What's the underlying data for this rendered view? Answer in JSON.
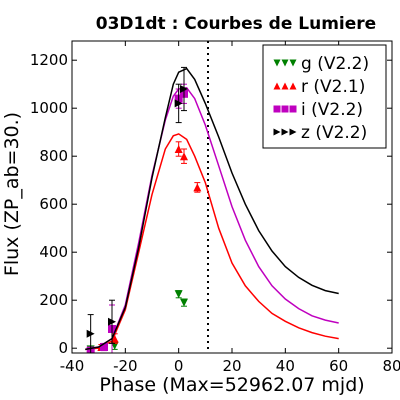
{
  "chart_data": {
    "type": "line",
    "title": "03D1dt : Courbes de Lumiere",
    "xlabel": "Phase (Max=52962.07 mjd)",
    "ylabel": "Flux (ZP_ab=30.)",
    "xlim": [
      -40,
      80
    ],
    "ylim": [
      -20,
      1280
    ],
    "xticks": [
      -40,
      -20,
      0,
      20,
      40,
      60,
      80
    ],
    "yticks": [
      0,
      200,
      400,
      600,
      800,
      1000,
      1200
    ],
    "xtick_labels": [
      "-40",
      "-20",
      "0",
      "20",
      "40",
      "60",
      "80"
    ],
    "ytick_labels": [
      "0",
      "200",
      "400",
      "600",
      "800",
      "1000",
      "1200"
    ],
    "vline_x": 11,
    "grid": false,
    "legend_position": "top-right",
    "series": [
      {
        "name": "g (V2.2)",
        "color": "#008000",
        "marker": "triangle-down",
        "points": [
          {
            "x": -33,
            "y": -5,
            "err": 10
          },
          {
            "x": -24,
            "y": 10,
            "err": 15
          },
          {
            "x": 0,
            "y": 225,
            "err": 15
          },
          {
            "x": 2,
            "y": 190,
            "err": 15
          }
        ],
        "curve": []
      },
      {
        "name": "r (V2.1)",
        "color": "#ff0000",
        "marker": "triangle-up",
        "points": [
          {
            "x": -33,
            "y": -10,
            "err": 10
          },
          {
            "x": -29,
            "y": 5,
            "err": 10
          },
          {
            "x": -24,
            "y": 40,
            "err": 20
          },
          {
            "x": 0,
            "y": 830,
            "err": 30
          },
          {
            "x": 2,
            "y": 800,
            "err": 30
          },
          {
            "x": 7,
            "y": 670,
            "err": 20
          }
        ],
        "curve": [
          {
            "x": -35,
            "y": -5
          },
          {
            "x": -30,
            "y": 0
          },
          {
            "x": -25,
            "y": 30
          },
          {
            "x": -20,
            "y": 160
          },
          {
            "x": -15,
            "y": 400
          },
          {
            "x": -10,
            "y": 640
          },
          {
            "x": -5,
            "y": 830
          },
          {
            "x": -2,
            "y": 885
          },
          {
            "x": 0,
            "y": 893
          },
          {
            "x": 3,
            "y": 870
          },
          {
            "x": 6,
            "y": 800
          },
          {
            "x": 10,
            "y": 690
          },
          {
            "x": 15,
            "y": 500
          },
          {
            "x": 20,
            "y": 355
          },
          {
            "x": 25,
            "y": 260
          },
          {
            "x": 30,
            "y": 195
          },
          {
            "x": 35,
            "y": 145
          },
          {
            "x": 40,
            "y": 112
          },
          {
            "x": 45,
            "y": 85
          },
          {
            "x": 50,
            "y": 65
          },
          {
            "x": 55,
            "y": 50
          },
          {
            "x": 60,
            "y": 40
          }
        ]
      },
      {
        "name": "i (V2.2)",
        "color": "#bf00bf",
        "marker": "square",
        "points": [
          {
            "x": -33,
            "y": -10,
            "err": 10
          },
          {
            "x": -28,
            "y": 5,
            "err": 15
          },
          {
            "x": -25,
            "y": 80,
            "err": 100
          },
          {
            "x": 0,
            "y": 1040,
            "err": 40
          },
          {
            "x": 2,
            "y": 1060,
            "err": 40
          }
        ],
        "curve": [
          {
            "x": -35,
            "y": -5
          },
          {
            "x": -30,
            "y": 5
          },
          {
            "x": -25,
            "y": 40
          },
          {
            "x": -20,
            "y": 180
          },
          {
            "x": -15,
            "y": 440
          },
          {
            "x": -10,
            "y": 720
          },
          {
            "x": -5,
            "y": 950
          },
          {
            "x": -2,
            "y": 1050
          },
          {
            "x": 0,
            "y": 1080
          },
          {
            "x": 3,
            "y": 1085
          },
          {
            "x": 6,
            "y": 1040
          },
          {
            "x": 10,
            "y": 930
          },
          {
            "x": 15,
            "y": 760
          },
          {
            "x": 20,
            "y": 590
          },
          {
            "x": 25,
            "y": 450
          },
          {
            "x": 30,
            "y": 340
          },
          {
            "x": 35,
            "y": 260
          },
          {
            "x": 40,
            "y": 205
          },
          {
            "x": 45,
            "y": 165
          },
          {
            "x": 50,
            "y": 135
          },
          {
            "x": 55,
            "y": 117
          },
          {
            "x": 60,
            "y": 105
          }
        ]
      },
      {
        "name": "z (V2.2)",
        "color": "#000000",
        "marker": "triangle-right",
        "points": [
          {
            "x": -33,
            "y": 60,
            "err": 80
          },
          {
            "x": -25,
            "y": 110,
            "err": 90
          },
          {
            "x": 0,
            "y": 1020,
            "err": 80
          },
          {
            "x": 2,
            "y": 1080,
            "err": 90
          }
        ],
        "curve": [
          {
            "x": -35,
            "y": -5
          },
          {
            "x": -30,
            "y": 5
          },
          {
            "x": -25,
            "y": 40
          },
          {
            "x": -20,
            "y": 170
          },
          {
            "x": -15,
            "y": 420
          },
          {
            "x": -10,
            "y": 710
          },
          {
            "x": -5,
            "y": 960
          },
          {
            "x": -2,
            "y": 1100
          },
          {
            "x": 0,
            "y": 1150
          },
          {
            "x": 3,
            "y": 1165
          },
          {
            "x": 6,
            "y": 1120
          },
          {
            "x": 10,
            "y": 1020
          },
          {
            "x": 15,
            "y": 880
          },
          {
            "x": 20,
            "y": 730
          },
          {
            "x": 25,
            "y": 600
          },
          {
            "x": 30,
            "y": 490
          },
          {
            "x": 35,
            "y": 405
          },
          {
            "x": 40,
            "y": 340
          },
          {
            "x": 45,
            "y": 295
          },
          {
            "x": 50,
            "y": 262
          },
          {
            "x": 55,
            "y": 240
          },
          {
            "x": 60,
            "y": 228
          }
        ]
      }
    ]
  }
}
